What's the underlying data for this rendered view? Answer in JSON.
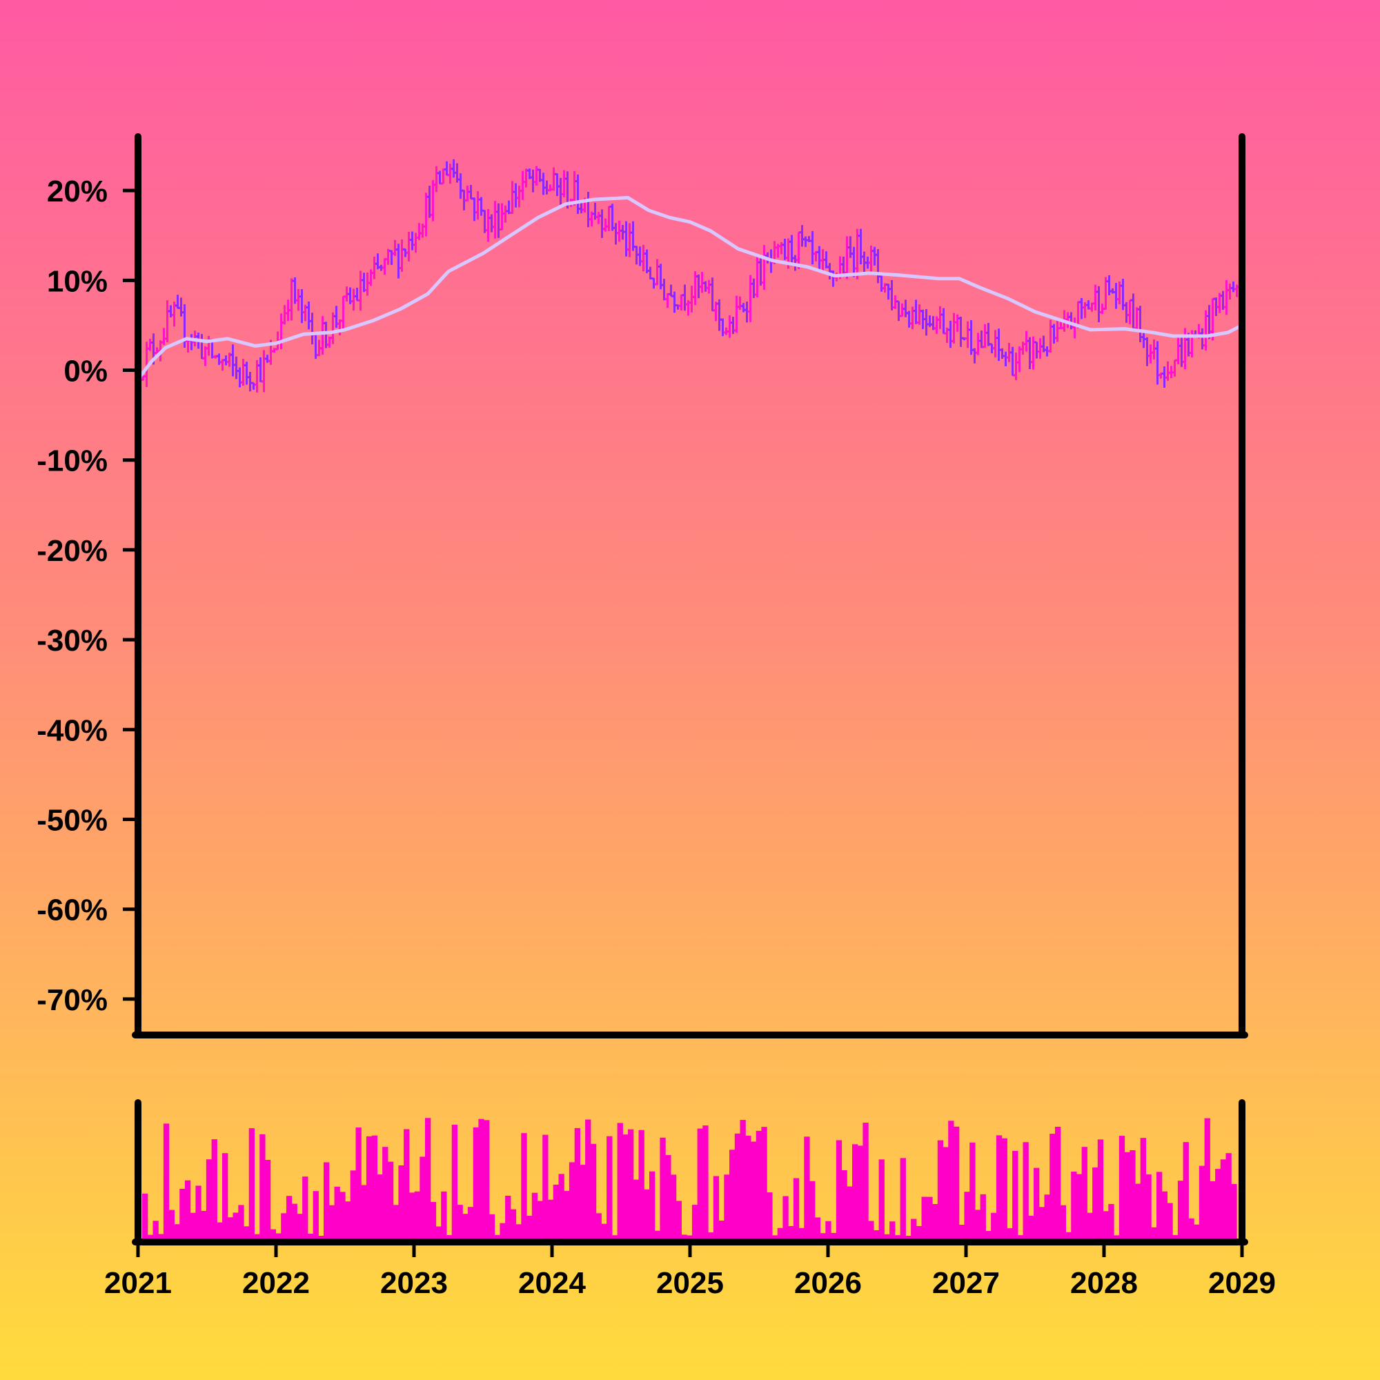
{
  "colors": {
    "bar_up": "#ff14c8",
    "bar_down": "#8c28ff",
    "moving_average": "#d9c8ff",
    "volume": "#ff00c8",
    "axis": "#000000"
  },
  "chart_data": {
    "type": "ohlc",
    "title": "",
    "xlabel": "",
    "ylabel": "",
    "ylim": [
      -74,
      26
    ],
    "y_ticks": [
      {
        "value": 20,
        "label": "20%"
      },
      {
        "value": 10,
        "label": "10%"
      },
      {
        "value": 0,
        "label": "0%"
      },
      {
        "value": -10,
        "label": "-10%"
      },
      {
        "value": -20,
        "label": "-20%"
      },
      {
        "value": -30,
        "label": "-30%"
      },
      {
        "value": -40,
        "label": "-40%"
      },
      {
        "value": -50,
        "label": "-50%"
      },
      {
        "value": -60,
        "label": "-60%"
      },
      {
        "value": -70,
        "label": "-70%"
      }
    ],
    "x_range": [
      2021,
      2029
    ],
    "x_ticks": [
      {
        "value": 2021,
        "label": "2021"
      },
      {
        "value": 2022,
        "label": "2022"
      },
      {
        "value": 2023,
        "label": "2023"
      },
      {
        "value": 2024,
        "label": "2024"
      },
      {
        "value": 2025,
        "label": "2025"
      },
      {
        "value": 2026,
        "label": "2026"
      },
      {
        "value": 2027,
        "label": "2027"
      },
      {
        "value": 2028,
        "label": "2028"
      },
      {
        "value": 2029,
        "label": "2029"
      }
    ],
    "bars_per_year": 40,
    "price_series_anchors": [
      [
        2021.0,
        0
      ],
      [
        2021.25,
        6
      ],
      [
        2021.5,
        2
      ],
      [
        2021.75,
        -0.5
      ],
      [
        2021.95,
        0.5
      ],
      [
        2022.1,
        9
      ],
      [
        2022.3,
        3
      ],
      [
        2022.5,
        7
      ],
      [
        2022.75,
        11
      ],
      [
        2022.95,
        14
      ],
      [
        2023.25,
        23
      ],
      [
        2023.55,
        16
      ],
      [
        2023.8,
        21
      ],
      [
        2024.1,
        20
      ],
      [
        2024.4,
        17
      ],
      [
        2024.7,
        11
      ],
      [
        2024.85,
        8.5
      ],
      [
        2025.1,
        9
      ],
      [
        2025.28,
        4
      ],
      [
        2025.5,
        11
      ],
      [
        2025.8,
        14
      ],
      [
        2026.0,
        10
      ],
      [
        2026.25,
        14
      ],
      [
        2026.5,
        7
      ],
      [
        2026.75,
        6
      ],
      [
        2027.0,
        4
      ],
      [
        2027.35,
        1
      ],
      [
        2027.7,
        4
      ],
      [
        2027.85,
        7
      ],
      [
        2028.05,
        9
      ],
      [
        2028.25,
        5
      ],
      [
        2028.4,
        0
      ],
      [
        2028.55,
        2
      ],
      [
        2028.7,
        4
      ],
      [
        2028.85,
        8
      ],
      [
        2029.0,
        10
      ]
    ],
    "moving_average": [
      [
        2021.0,
        -1
      ],
      [
        2021.1,
        1
      ],
      [
        2021.2,
        2.5
      ],
      [
        2021.35,
        3.5
      ],
      [
        2021.5,
        3.2
      ],
      [
        2021.65,
        3.5
      ],
      [
        2021.85,
        2.7
      ],
      [
        2022.0,
        3
      ],
      [
        2022.2,
        4
      ],
      [
        2022.4,
        4.2
      ],
      [
        2022.5,
        4.5
      ],
      [
        2022.7,
        5.5
      ],
      [
        2022.9,
        6.8
      ],
      [
        2023.1,
        8.5
      ],
      [
        2023.25,
        11
      ],
      [
        2023.5,
        13
      ],
      [
        2023.7,
        15
      ],
      [
        2023.9,
        17
      ],
      [
        2024.1,
        18.5
      ],
      [
        2024.3,
        19
      ],
      [
        2024.55,
        19.2
      ],
      [
        2024.7,
        17.8
      ],
      [
        2024.85,
        17
      ],
      [
        2025.0,
        16.5
      ],
      [
        2025.15,
        15.5
      ],
      [
        2025.35,
        13.5
      ],
      [
        2025.6,
        12.2
      ],
      [
        2025.85,
        11.5
      ],
      [
        2026.05,
        10.5
      ],
      [
        2026.3,
        10.8
      ],
      [
        2026.5,
        10.6
      ],
      [
        2026.8,
        10.2
      ],
      [
        2026.95,
        10.2
      ],
      [
        2027.1,
        9.2
      ],
      [
        2027.3,
        8
      ],
      [
        2027.5,
        6.5
      ],
      [
        2027.7,
        5.5
      ],
      [
        2027.9,
        4.5
      ],
      [
        2028.15,
        4.6
      ],
      [
        2028.35,
        4.2
      ],
      [
        2028.5,
        3.8
      ],
      [
        2028.75,
        3.8
      ],
      [
        2028.9,
        4.2
      ],
      [
        2029.0,
        5
      ]
    ],
    "volume_range": [
      0.05,
      1.0
    ]
  }
}
